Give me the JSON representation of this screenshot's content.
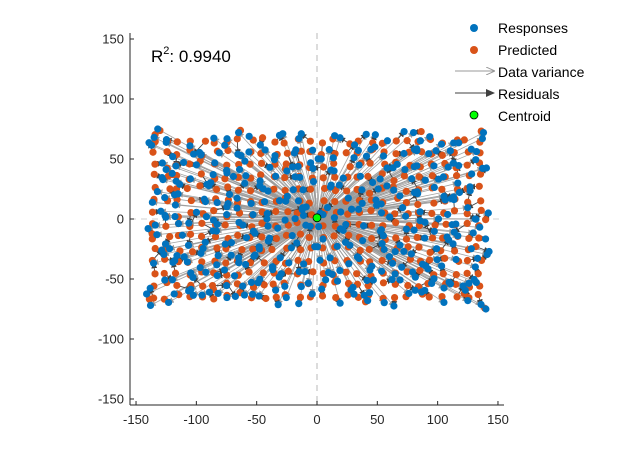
{
  "chart_data": {
    "type": "scatter",
    "title": "",
    "xlabel": "",
    "ylabel": "",
    "xlim": [
      -155,
      155
    ],
    "ylim": [
      -155,
      155
    ],
    "xticks": [
      -150,
      -100,
      -50,
      0,
      50,
      100,
      150
    ],
    "yticks": [
      -150,
      -100,
      -50,
      0,
      50,
      100,
      150
    ],
    "grid": false,
    "legend_position": "top-right",
    "annotation": {
      "label": "R",
      "superscript": "2",
      "value": ": 0.9940"
    },
    "centroid": {
      "x": 0,
      "y": 1
    },
    "reference_lines": {
      "x": 0,
      "y": 0,
      "style": "dashed"
    },
    "predicted_grid": {
      "x_start": -135,
      "x_end": 135,
      "x_step": 10,
      "y_start": -65,
      "y_end": 65,
      "y_step": 10
    },
    "series": [
      {
        "name": "Responses",
        "marker": "circle",
        "color": "#0072BD",
        "sample_points": [
          {
            "x": -132,
            "y": 75
          },
          {
            "x": -135,
            "y": 68
          },
          {
            "x": -140,
            "y": -8
          },
          {
            "x": -138,
            "y": -72
          },
          {
            "x": -120,
            "y": 38
          },
          {
            "x": -82,
            "y": -62
          },
          {
            "x": 42,
            "y": -68
          },
          {
            "x": 125,
            "y": -68
          },
          {
            "x": 140,
            "y": -75
          },
          {
            "x": 142,
            "y": 5
          },
          {
            "x": 138,
            "y": 72
          },
          {
            "x": 80,
            "y": 72
          },
          {
            "x": -65,
            "y": 72
          },
          {
            "x": 48,
            "y": 60
          },
          {
            "x": -25,
            "y": 40
          }
        ]
      },
      {
        "name": "Predicted",
        "marker": "circle",
        "color": "#D95319"
      },
      {
        "name": "Data variance",
        "marker": "arrow",
        "color": "#999999"
      },
      {
        "name": "Residuals",
        "marker": "arrow",
        "color": "#404040"
      },
      {
        "name": "Centroid",
        "marker": "circle",
        "color": "#00FF00"
      }
    ]
  },
  "colors": {
    "responses": "#0072BD",
    "predicted": "#D95319",
    "variance_arrow": "#999999",
    "residual_arrow": "#404040",
    "centroid_fill": "#00FF00",
    "axis": "#262626",
    "reference_line": "#d0d0d0"
  }
}
